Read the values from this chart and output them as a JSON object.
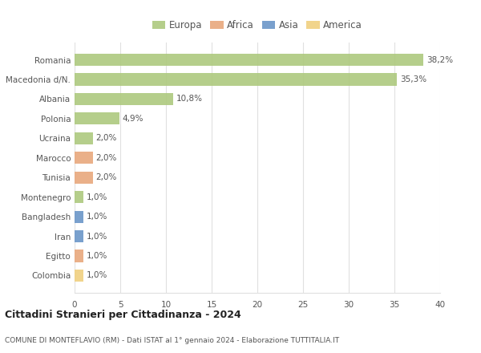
{
  "countries": [
    "Romania",
    "Macedonia d/N.",
    "Albania",
    "Polonia",
    "Ucraina",
    "Marocco",
    "Tunisia",
    "Montenegro",
    "Bangladesh",
    "Iran",
    "Egitto",
    "Colombia"
  ],
  "values": [
    38.2,
    35.3,
    10.8,
    4.9,
    2.0,
    2.0,
    2.0,
    1.0,
    1.0,
    1.0,
    1.0,
    1.0
  ],
  "labels": [
    "38,2%",
    "35,3%",
    "10,8%",
    "4,9%",
    "2,0%",
    "2,0%",
    "2,0%",
    "1,0%",
    "1,0%",
    "1,0%",
    "1,0%",
    "1,0%"
  ],
  "continents": [
    "Europa",
    "Europa",
    "Europa",
    "Europa",
    "Europa",
    "Africa",
    "Africa",
    "Europa",
    "Asia",
    "Asia",
    "Africa",
    "America"
  ],
  "colors": {
    "Europa": "#adc97e",
    "Africa": "#e8a87c",
    "Asia": "#6b96c8",
    "America": "#f0d080"
  },
  "xlim": [
    0,
    40
  ],
  "xticks": [
    0,
    5,
    10,
    15,
    20,
    25,
    30,
    35,
    40
  ],
  "title": "Cittadini Stranieri per Cittadinanza - 2024",
  "subtitle": "COMUNE DI MONTEFLAVIO (RM) - Dati ISTAT al 1° gennaio 2024 - Elaborazione TUTTITALIA.IT",
  "background_color": "#ffffff",
  "grid_color": "#e0e0e0",
  "legend_order": [
    "Europa",
    "Africa",
    "Asia",
    "America"
  ]
}
